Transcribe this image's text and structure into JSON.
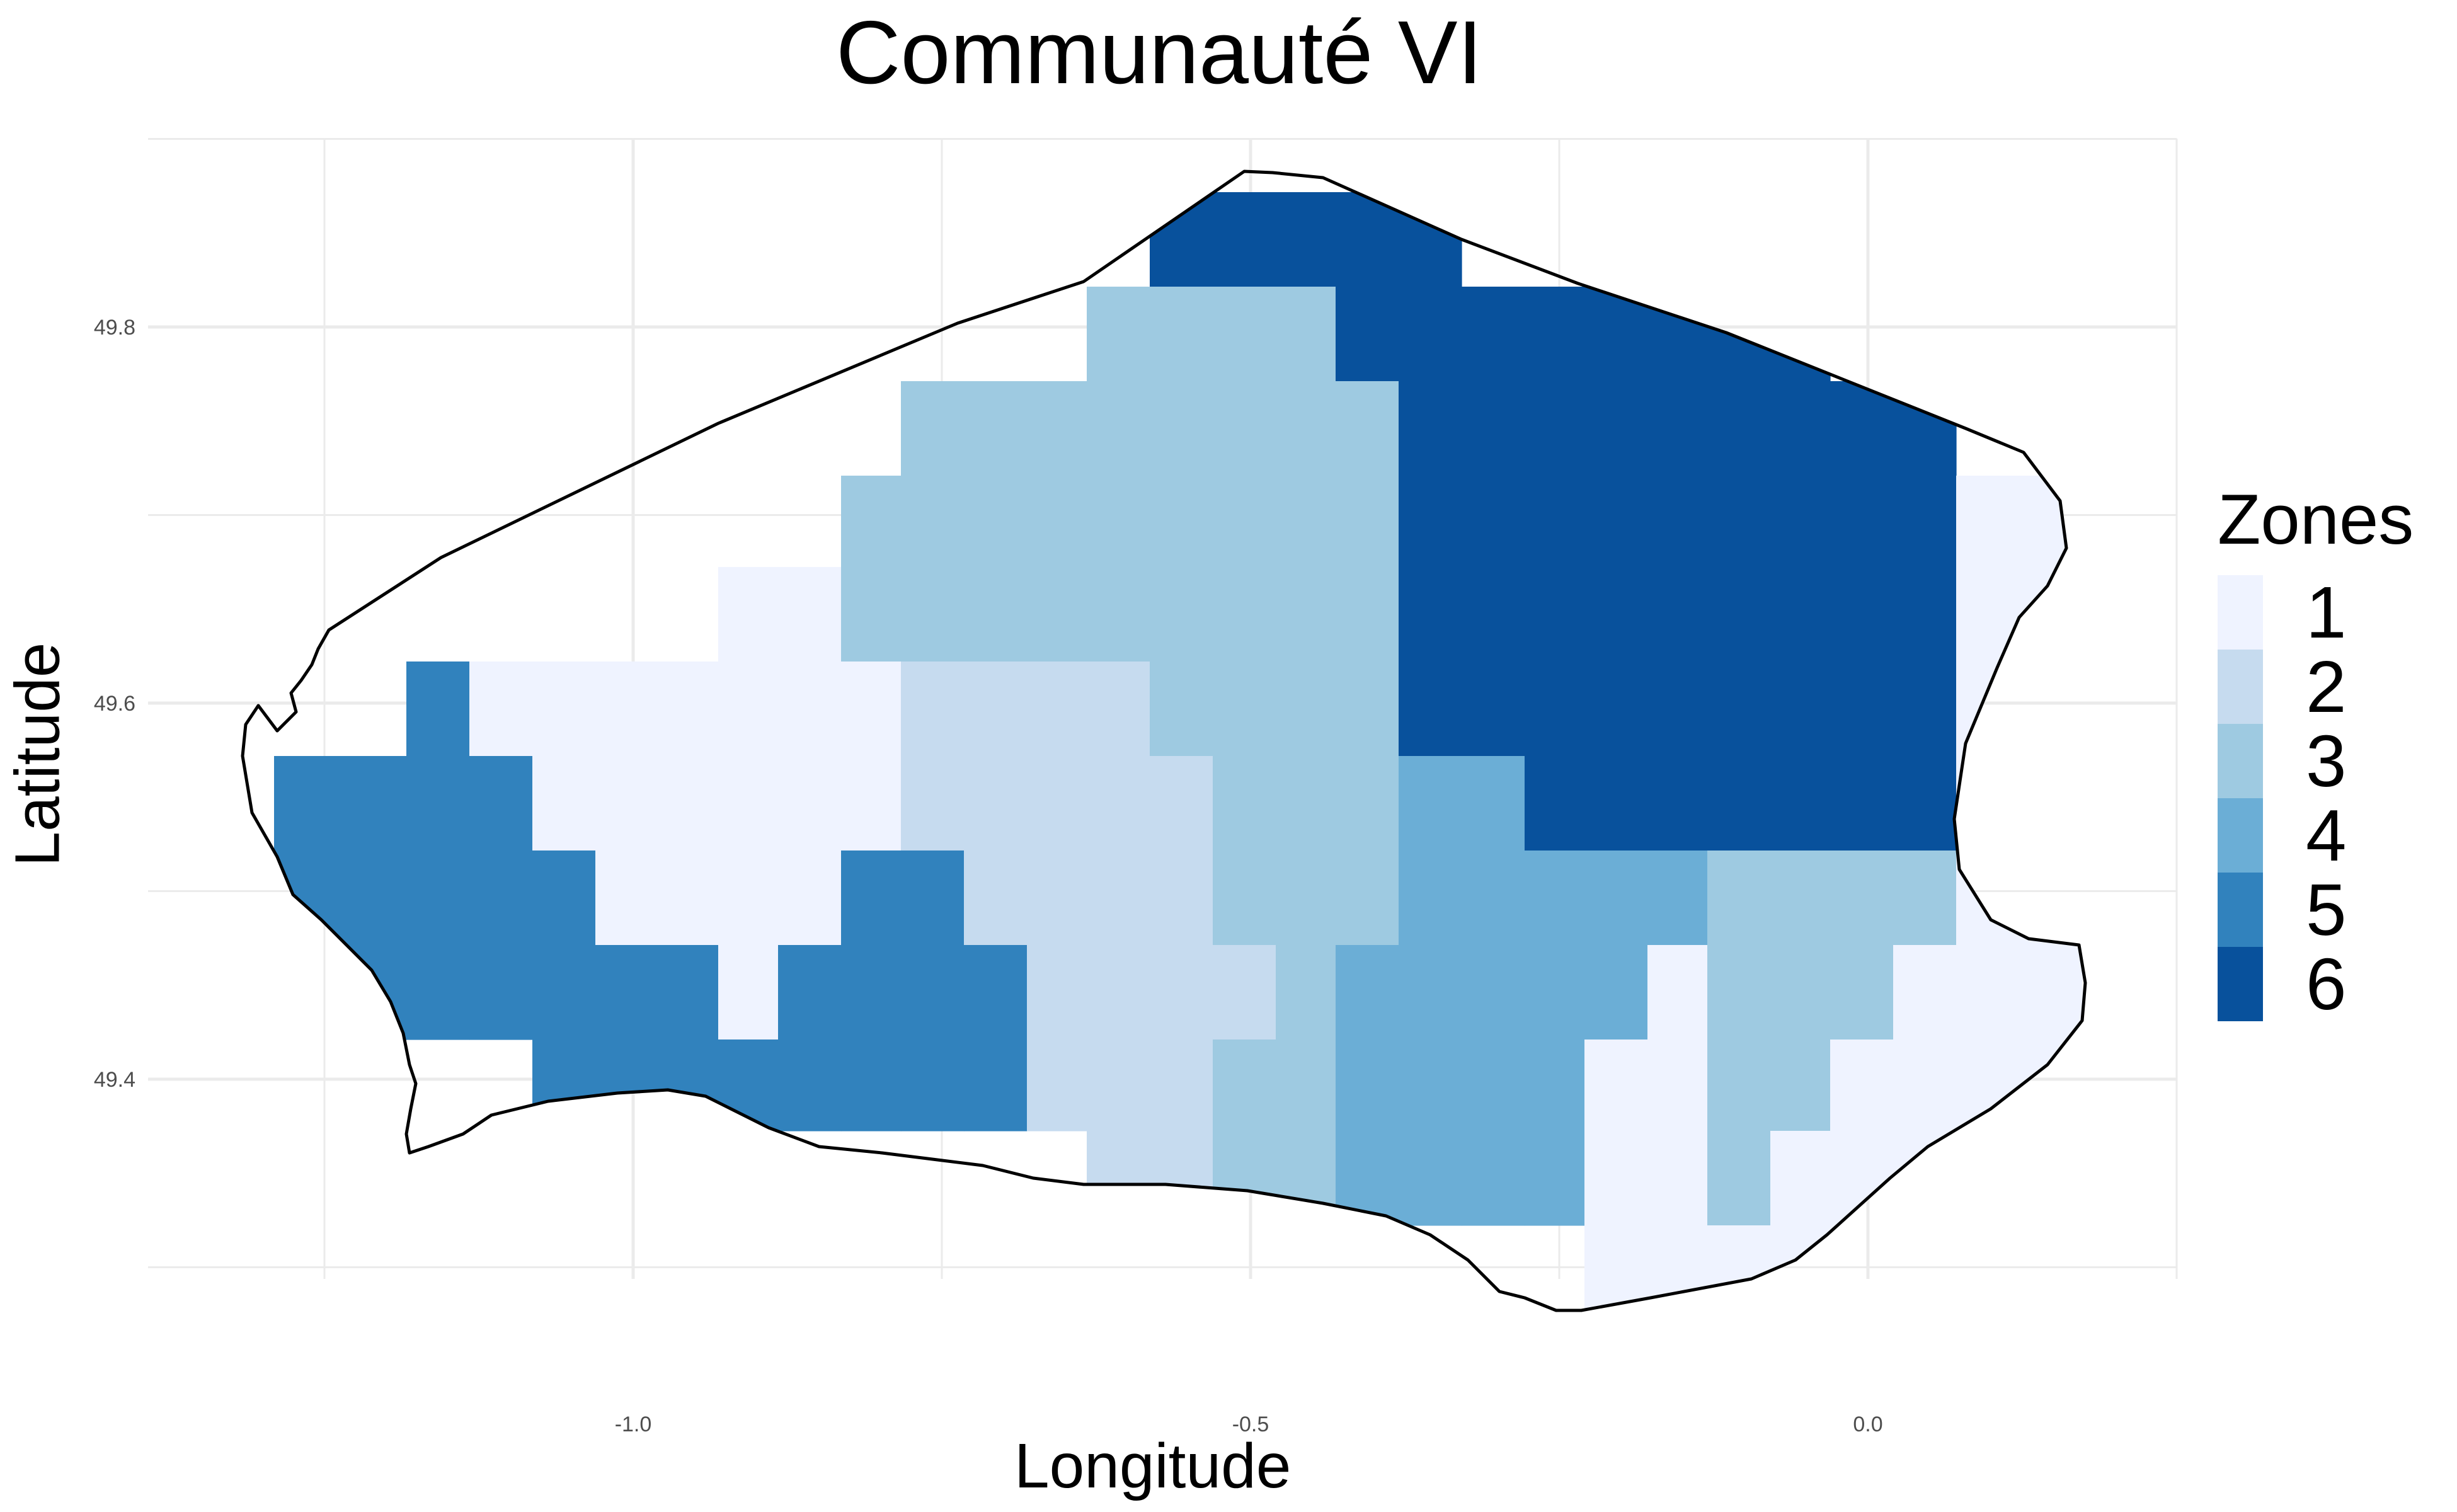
{
  "title": "Communauté VI",
  "xlabel": "Longitude",
  "ylabel": "Latitude",
  "legend": {
    "title": "Zones",
    "items": [
      {
        "label": "1",
        "color": "#eff3ff"
      },
      {
        "label": "2",
        "color": "#c6dbef"
      },
      {
        "label": "3",
        "color": "#9ecae1"
      },
      {
        "label": "4",
        "color": "#6baed6"
      },
      {
        "label": "5",
        "color": "#3182bd"
      },
      {
        "label": "6",
        "color": "#08519c"
      }
    ]
  },
  "chart_data": {
    "type": "heatmap",
    "title": "Communauté VI",
    "xlabel": "Longitude",
    "ylabel": "Latitude",
    "xlim": [
      -1.5,
      0.25
    ],
    "ylim": [
      49.28,
      49.9
    ],
    "x_ticks": [
      "-1.0",
      "-0.5",
      "0.0"
    ],
    "x_tick_values": [
      -1.0,
      -0.5,
      0.0
    ],
    "y_ticks": [
      "49.4",
      "49.6",
      "49.8"
    ],
    "y_tick_values": [
      49.4,
      49.6,
      49.8
    ],
    "grid": true,
    "legend_position": "right",
    "zones": [
      {
        "zone": 1,
        "label": "1",
        "lon_range": [
          -1.25,
          0.2
        ],
        "lat_range": [
          49.32,
          49.78
        ]
      },
      {
        "zone": 2,
        "label": "2",
        "lon_range": [
          -0.95,
          -0.65
        ],
        "lat_range": [
          49.37,
          49.62
        ]
      },
      {
        "zone": 3,
        "label": "3",
        "lon_range": [
          -0.98,
          -0.1
        ],
        "lat_range": [
          49.32,
          49.82
        ]
      },
      {
        "zone": 4,
        "label": "4",
        "lon_range": [
          -0.57,
          -0.3
        ],
        "lat_range": [
          49.33,
          49.57
        ]
      },
      {
        "zone": 5,
        "label": "5",
        "lon_range": [
          -1.3,
          -0.83
        ],
        "lat_range": [
          49.37,
          49.66
        ]
      },
      {
        "zone": 6,
        "label": "6",
        "lon_range": [
          -0.63,
          -0.03
        ],
        "lat_range": [
          49.52,
          49.87
        ]
      }
    ]
  }
}
